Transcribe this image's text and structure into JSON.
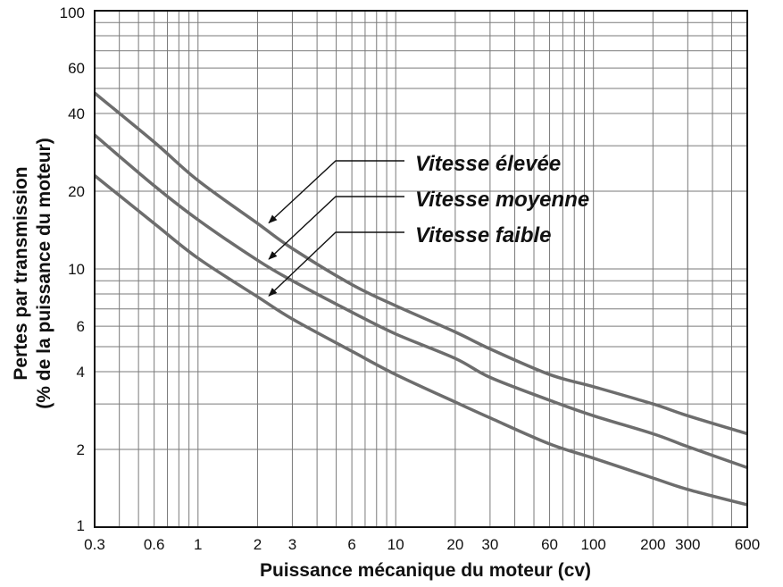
{
  "chart_data": {
    "type": "line",
    "xscale": "log",
    "yscale": "log",
    "xlabel": "Puissance mécanique du moteur (cv)",
    "ylabel_line1": "Pertes par transmission",
    "ylabel_line2": "(% de la puissance du moteur)",
    "xlim": [
      0.3,
      600
    ],
    "ylim": [
      1,
      100
    ],
    "xticks": [
      0.3,
      0.6,
      1,
      2,
      3,
      6,
      10,
      20,
      30,
      60,
      100,
      200,
      300,
      600
    ],
    "xtick_labels": [
      "0.3",
      "0.6",
      "1",
      "2",
      "3",
      "6",
      "10",
      "20",
      "30",
      "60",
      "100",
      "200",
      "300",
      "600"
    ],
    "yticks": [
      1,
      2,
      4,
      6,
      10,
      20,
      40,
      60,
      100
    ],
    "ytick_labels": [
      "1",
      "2",
      "4",
      "6",
      "10",
      "20",
      "40",
      "60",
      "100"
    ],
    "grid": true,
    "series": [
      {
        "name": "Vitesse élevée",
        "x": [
          0.3,
          0.6,
          1,
          2,
          3,
          6,
          10,
          20,
          30,
          60,
          100,
          200,
          300,
          600
        ],
        "y": [
          48,
          31,
          22,
          15,
          12,
          8.7,
          7.2,
          5.7,
          4.9,
          3.9,
          3.5,
          3.0,
          2.7,
          2.3
        ]
      },
      {
        "name": "Vitesse moyenne",
        "x": [
          0.3,
          0.6,
          1,
          2,
          3,
          6,
          10,
          20,
          30,
          60,
          100,
          200,
          300,
          600
        ],
        "y": [
          33,
          21,
          15.5,
          10.8,
          9.0,
          6.8,
          5.6,
          4.5,
          3.8,
          3.1,
          2.7,
          2.3,
          2.05,
          1.7
        ]
      },
      {
        "name": "Vitesse faible",
        "x": [
          0.3,
          0.6,
          1,
          2,
          3,
          6,
          10,
          20,
          30,
          60,
          100,
          200,
          300,
          600
        ],
        "y": [
          23,
          15,
          11,
          7.8,
          6.4,
          4.8,
          3.9,
          3.05,
          2.65,
          2.1,
          1.85,
          1.55,
          1.4,
          1.22
        ]
      }
    ],
    "annotations": [
      {
        "text": "Vitesse élevée",
        "series": 0,
        "x_target": 2.1
      },
      {
        "text": "Vitesse moyenne",
        "series": 1,
        "x_target": 2.1
      },
      {
        "text": "Vitesse faible",
        "series": 2,
        "x_target": 2.1
      }
    ],
    "colors": {
      "curve": "#6d6d6d",
      "grid": "#7a7a7a",
      "frame": "#111111",
      "text": "#111111"
    }
  }
}
